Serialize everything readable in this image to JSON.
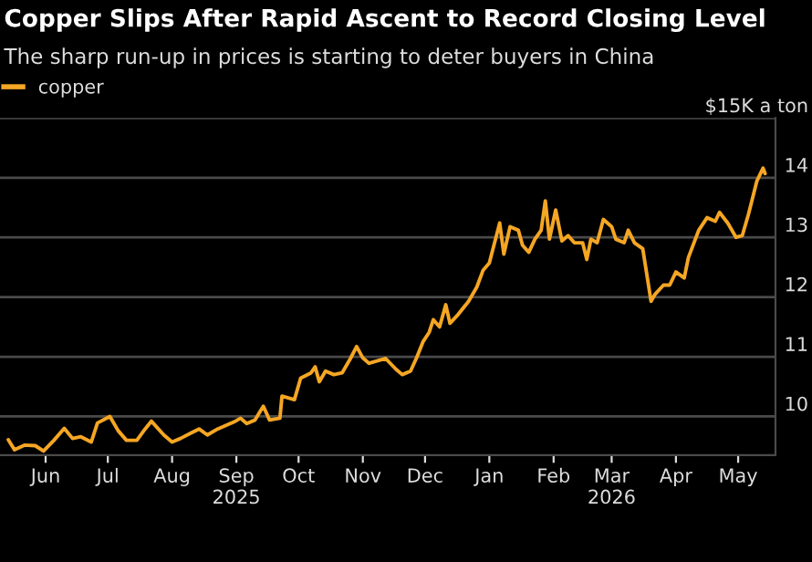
{
  "chart_data": {
    "type": "line",
    "title": "Copper Slips After Rapid Ascent to Record Closing Level",
    "subtitle": "The sharp run-up in prices is starting to deter buyers in China",
    "x": [
      "2025-05-14",
      "2025-05-17",
      "2025-05-22",
      "2025-05-27",
      "2025-05-31",
      "2025-06-05",
      "2025-06-10",
      "2025-06-14",
      "2025-06-18",
      "2025-06-23",
      "2025-06-26",
      "2025-07-02",
      "2025-07-06",
      "2025-07-10",
      "2025-07-15",
      "2025-07-19",
      "2025-07-22",
      "2025-07-28",
      "2025-08-01",
      "2025-08-05",
      "2025-08-10",
      "2025-08-14",
      "2025-08-18",
      "2025-08-23",
      "2025-08-27",
      "2025-08-31",
      "2025-09-03",
      "2025-09-06",
      "2025-09-10",
      "2025-09-14",
      "2025-09-17",
      "2025-09-22",
      "2025-09-23",
      "2025-09-29",
      "2025-10-02",
      "2025-10-07",
      "2025-10-09",
      "2025-10-11",
      "2025-10-14",
      "2025-10-18",
      "2025-10-22",
      "2025-10-26",
      "2025-10-29",
      "2025-11-01",
      "2025-11-04",
      "2025-11-12",
      "2025-11-17",
      "2025-11-20",
      "2025-11-24",
      "2025-11-27",
      "2025-11-30",
      "2025-12-03",
      "2025-12-05",
      "2025-12-08",
      "2025-12-11",
      "2025-12-13",
      "2025-12-17",
      "2025-12-22",
      "2025-12-26",
      "2025-12-29",
      "2026-01-01",
      "2026-01-06",
      "2026-01-08",
      "2026-01-11",
      "2026-01-15",
      "2026-01-17",
      "2026-01-20",
      "2026-01-23",
      "2026-01-26",
      "2026-01-28",
      "2026-01-30",
      "2026-02-02",
      "2026-02-05",
      "2026-02-08",
      "2026-02-11",
      "2026-02-15",
      "2026-02-17",
      "2026-02-19",
      "2026-02-22",
      "2026-02-25",
      "2026-03-01",
      "2026-03-03",
      "2026-03-07",
      "2026-03-09",
      "2026-03-12",
      "2026-03-16",
      "2026-03-20",
      "2026-03-22",
      "2026-03-26",
      "2026-03-29",
      "2026-04-01",
      "2026-04-05",
      "2026-04-07",
      "2026-04-12",
      "2026-04-16",
      "2026-04-20",
      "2026-04-22",
      "2026-04-26",
      "2026-04-30",
      "2026-05-03",
      "2026-05-06",
      "2026-05-10",
      "2026-05-13",
      "2026-05-14"
    ],
    "series": [
      {
        "name": "copper",
        "color": "#f5a623",
        "values": [
          9.61,
          9.44,
          9.52,
          9.51,
          9.42,
          9.6,
          9.8,
          9.63,
          9.66,
          9.57,
          9.89,
          10.0,
          9.76,
          9.6,
          9.6,
          9.79,
          9.92,
          9.69,
          9.57,
          9.63,
          9.72,
          9.79,
          9.69,
          9.79,
          9.85,
          9.91,
          9.97,
          9.88,
          9.94,
          10.17,
          9.94,
          9.97,
          10.34,
          10.28,
          10.64,
          10.73,
          10.83,
          10.58,
          10.76,
          10.7,
          10.73,
          10.97,
          11.17,
          10.98,
          10.89,
          10.97,
          10.79,
          10.7,
          10.76,
          10.99,
          11.25,
          11.41,
          11.62,
          11.5,
          11.87,
          11.56,
          11.71,
          11.93,
          12.17,
          12.45,
          12.57,
          13.24,
          12.72,
          13.18,
          13.12,
          12.87,
          12.75,
          12.97,
          13.12,
          13.61,
          12.97,
          13.46,
          12.94,
          13.03,
          12.91,
          12.91,
          12.63,
          12.97,
          12.91,
          13.3,
          13.18,
          12.97,
          12.91,
          13.12,
          12.91,
          12.81,
          11.93,
          12.05,
          12.2,
          12.2,
          12.42,
          12.32,
          12.66,
          13.12,
          13.33,
          13.27,
          13.42,
          13.24,
          13.0,
          13.03,
          13.39,
          13.94,
          14.16,
          14.07
        ]
      }
    ],
    "xlim": [
      "2025-05-10",
      "2026-05-19"
    ],
    "xticks": [
      {
        "value": "2025-06-01",
        "label": "Jun"
      },
      {
        "value": "2025-07-01",
        "label": "Jul"
      },
      {
        "value": "2025-08-01",
        "label": "Aug"
      },
      {
        "value": "2025-09-01",
        "label": "Sep\n2025"
      },
      {
        "value": "2025-10-01",
        "label": "Oct"
      },
      {
        "value": "2025-11-01",
        "label": "Nov"
      },
      {
        "value": "2025-12-01",
        "label": "Dec"
      },
      {
        "value": "2026-01-01",
        "label": "Jan"
      },
      {
        "value": "2026-02-01",
        "label": "Feb"
      },
      {
        "value": "2026-03-01",
        "label": "Mar\n2026"
      },
      {
        "value": "2026-04-01",
        "label": "Apr"
      },
      {
        "value": "2026-05-01",
        "label": "May"
      }
    ],
    "ylim": [
      9.35,
      15
    ],
    "yticks": [
      10,
      11,
      12,
      13,
      14,
      {
        "value": 15,
        "label": "$15K a ton"
      }
    ],
    "grid": "y",
    "legend": "top left"
  }
}
